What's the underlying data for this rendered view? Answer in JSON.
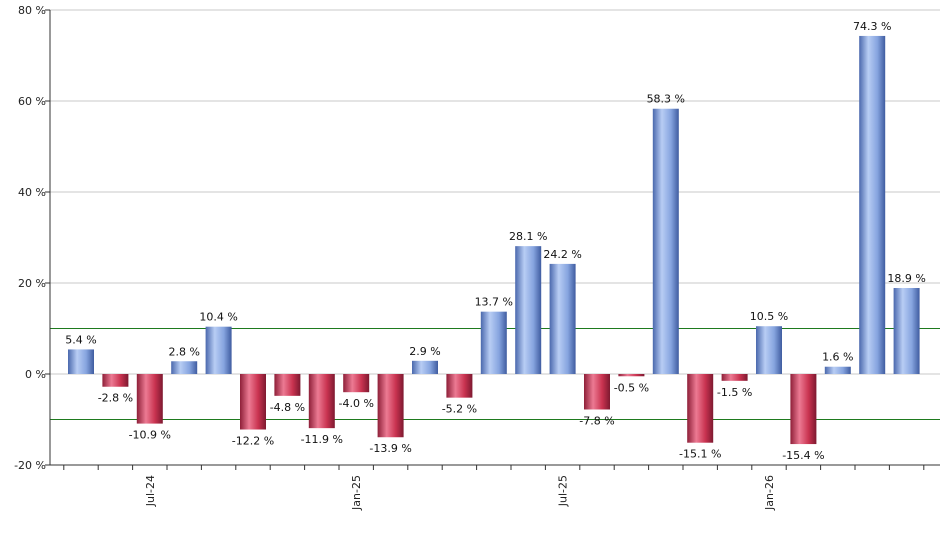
{
  "chart_data": {
    "type": "bar",
    "ylim": [
      -20,
      80
    ],
    "y_ticks": [
      -20,
      0,
      20,
      40,
      60,
      80
    ],
    "y_tick_labels": [
      "-20 %",
      "0 %",
      "20 %",
      "40 %",
      "60 %",
      "80 %"
    ],
    "values": [
      5.4,
      -2.8,
      -10.9,
      2.8,
      10.4,
      -12.2,
      -4.8,
      -11.9,
      -4.0,
      -13.9,
      2.9,
      -5.2,
      13.7,
      28.1,
      24.2,
      -7.8,
      -0.5,
      58.3,
      -15.1,
      -1.5,
      10.5,
      -15.4,
      1.6,
      74.3,
      18.9
    ],
    "data_labels": [
      "5.4 %",
      "-2.8 %",
      "-10.9 %",
      "2.8 %",
      "10.4 %",
      "-12.2 %",
      "-4.8 %",
      "-11.9 %",
      "-4.0 %",
      "-13.9 %",
      "2.9 %",
      "-5.2 %",
      "13.7 %",
      "28.1 %",
      "24.2 %",
      "-7.8 %",
      "-0.5 %",
      "58.3 %",
      "-15.1 %",
      "-1.5 %",
      "10.5 %",
      "-15.4 %",
      "1.6 %",
      "74.3 %",
      "18.9 %"
    ],
    "x_tick_labels": [
      {
        "label": "Jul-24",
        "at_bar": 2.5
      },
      {
        "label": "Jan-25",
        "at_bar": 8.5
      },
      {
        "label": "Jul-25",
        "at_bar": 14.5
      },
      {
        "label": "Jan-26",
        "at_bar": 20.5
      }
    ],
    "reference_lines": [
      10,
      -10
    ],
    "grid": true,
    "colors": {
      "positive": "#7e9edc",
      "positive_light": "#b5cbf3",
      "positive_dark": "#3d5a9e",
      "negative": "#c8304f",
      "negative_light": "#e8738c",
      "negative_dark": "#7a1a30",
      "reference_line": "#1e7a1e",
      "grid": "#c8c8c8",
      "axis": "#333333"
    }
  }
}
